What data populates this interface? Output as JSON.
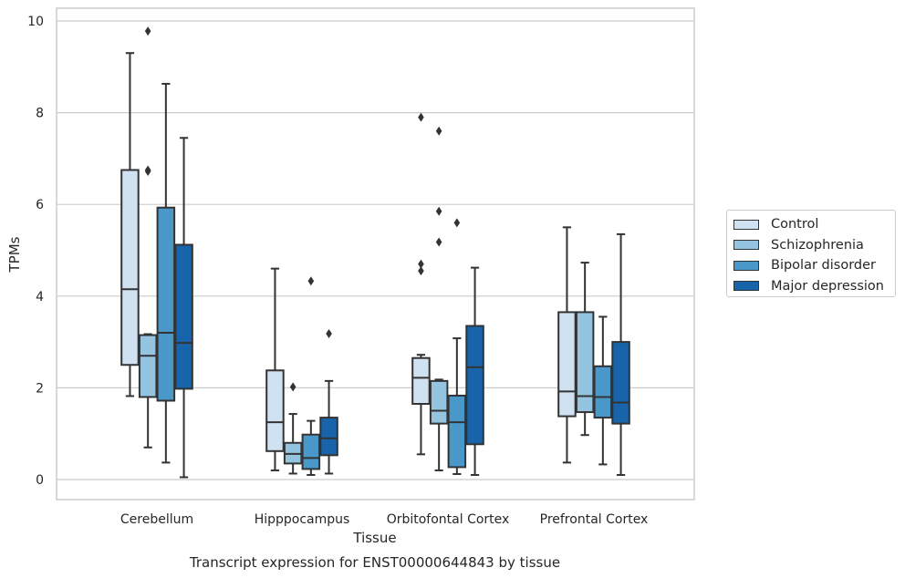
{
  "chart_data": {
    "type": "box",
    "title": "Transcript expression for ENST00000644843 by tissue",
    "xlabel": "Tissue",
    "ylabel": "TPMs",
    "categories": [
      "Cerebellum",
      "Hipppocampus",
      "Orbitofontal Cortex",
      "Prefrontal Cortex"
    ],
    "ylim": [
      -0.4,
      10.3
    ],
    "yticks": [
      0,
      2,
      4,
      6,
      8,
      10
    ],
    "grid": "horizontal",
    "legend_position": "right",
    "series": [
      {
        "name": "Control",
        "color": "#d0e1f2",
        "boxes": [
          {
            "whisker_low": 1.82,
            "q1": 2.5,
            "median": 4.15,
            "q3": 6.75,
            "whisker_high": 9.3,
            "outliers": []
          },
          {
            "whisker_low": 0.2,
            "q1": 0.62,
            "median": 1.25,
            "q3": 2.38,
            "whisker_high": 4.6,
            "outliers": []
          },
          {
            "whisker_low": 0.55,
            "q1": 1.65,
            "median": 2.22,
            "q3": 2.65,
            "whisker_high": 2.72,
            "outliers": [
              4.55,
              4.7,
              7.9
            ]
          },
          {
            "whisker_low": 0.37,
            "q1": 1.38,
            "median": 1.92,
            "q3": 3.65,
            "whisker_high": 5.5,
            "outliers": []
          }
        ]
      },
      {
        "name": "Schizophrenia",
        "color": "#94c4df",
        "boxes": [
          {
            "whisker_low": 0.7,
            "q1": 1.8,
            "median": 2.7,
            "q3": 3.15,
            "whisker_high": 3.17,
            "outliers": [
              6.72,
              6.75,
              9.78
            ]
          },
          {
            "whisker_low": 0.13,
            "q1": 0.35,
            "median": 0.56,
            "q3": 0.8,
            "whisker_high": 1.43,
            "outliers": [
              2.02
            ]
          },
          {
            "whisker_low": 0.2,
            "q1": 1.22,
            "median": 1.5,
            "q3": 2.15,
            "whisker_high": 2.18,
            "outliers": [
              5.18,
              5.85,
              7.6
            ]
          },
          {
            "whisker_low": 0.97,
            "q1": 1.47,
            "median": 1.82,
            "q3": 3.65,
            "whisker_high": 4.73,
            "outliers": []
          }
        ]
      },
      {
        "name": "Bipolar disorder",
        "color": "#4a98c9",
        "boxes": [
          {
            "whisker_low": 0.37,
            "q1": 1.72,
            "median": 3.2,
            "q3": 5.93,
            "whisker_high": 8.63,
            "outliers": []
          },
          {
            "whisker_low": 0.1,
            "q1": 0.23,
            "median": 0.47,
            "q3": 0.98,
            "whisker_high": 1.28,
            "outliers": [
              4.33
            ]
          },
          {
            "whisker_low": 0.12,
            "q1": 0.27,
            "median": 1.25,
            "q3": 1.83,
            "whisker_high": 3.08,
            "outliers": [
              5.6
            ]
          },
          {
            "whisker_low": 0.33,
            "q1": 1.35,
            "median": 1.8,
            "q3": 2.47,
            "whisker_high": 3.55,
            "outliers": []
          }
        ]
      },
      {
        "name": "Major depression",
        "color": "#1764ab",
        "boxes": [
          {
            "whisker_low": 0.05,
            "q1": 1.98,
            "median": 2.98,
            "q3": 5.12,
            "whisker_high": 7.45,
            "outliers": []
          },
          {
            "whisker_low": 0.13,
            "q1": 0.53,
            "median": 0.9,
            "q3": 1.35,
            "whisker_high": 2.15,
            "outliers": [
              3.18
            ]
          },
          {
            "whisker_low": 0.1,
            "q1": 0.77,
            "median": 2.45,
            "q3": 3.35,
            "whisker_high": 4.62,
            "outliers": []
          },
          {
            "whisker_low": 0.1,
            "q1": 1.22,
            "median": 1.68,
            "q3": 3.0,
            "whisker_high": 5.35,
            "outliers": []
          }
        ]
      }
    ]
  }
}
